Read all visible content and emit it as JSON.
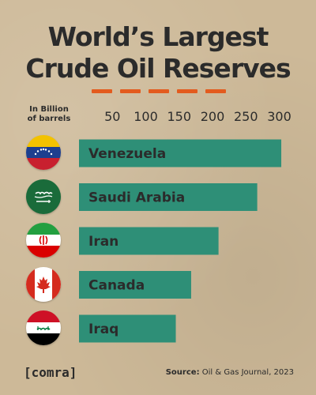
{
  "title_line1": "World’s Largest",
  "title_line2": "Crude Oil Reserves",
  "unit_line1": "In Billion",
  "unit_line2": "of barrels",
  "brand": "[comra]",
  "source_label": "Source:",
  "source_text": " Oil & Gas Journal, 2023",
  "colors": {
    "bar": "#2e8f77",
    "title": "#2b2b2b",
    "accent": "#e35b1e"
  },
  "chart_data": {
    "type": "bar",
    "orientation": "horizontal",
    "title": "World’s Largest Crude Oil Reserves",
    "xlabel": "In Billion of barrels",
    "ylabel": "",
    "xlim": [
      0,
      310
    ],
    "xticks": [
      50,
      100,
      150,
      200,
      250,
      300
    ],
    "categories": [
      "Venezuela",
      "Saudi Arabia",
      "Iran",
      "Canada",
      "Iraq"
    ],
    "values": [
      303,
      267,
      209,
      168,
      145
    ],
    "icons": [
      "venezuela-flag-icon",
      "saudi-arabia-flag-icon",
      "iran-flag-icon",
      "canada-flag-icon",
      "iraq-flag-icon"
    ],
    "legend": "none",
    "grid": false
  }
}
